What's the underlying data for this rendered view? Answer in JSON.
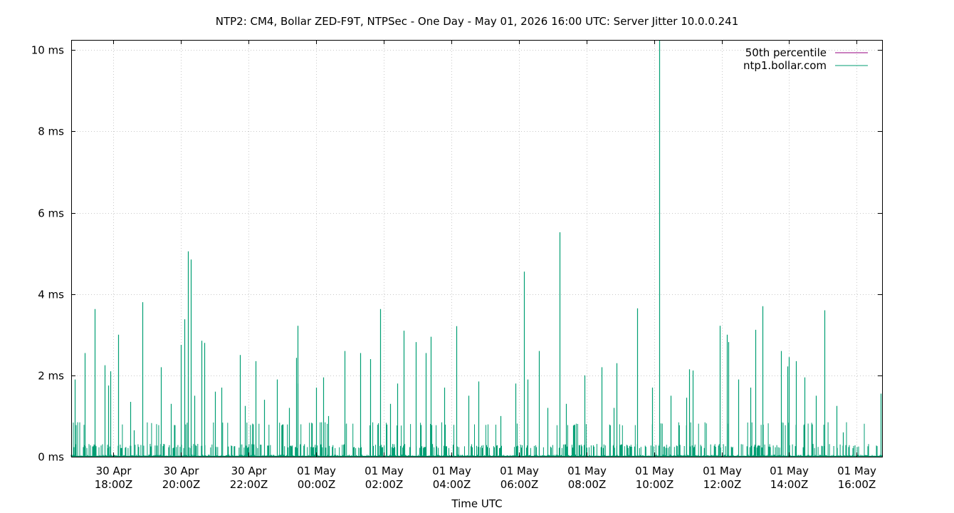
{
  "chart_data": {
    "type": "line",
    "title": "NTP2: CM4, Bollar ZED-F9T, NTPSec - One Day - May 01, 2026 16:00 UTC: Server Jitter 10.0.0.241",
    "xlabel": "Time UTC",
    "ylabel": "",
    "x_range_hours": [
      16.75,
      40.75
    ],
    "x_ticks": [
      {
        "hour": 18,
        "date": "30 Apr",
        "time": "18:00Z"
      },
      {
        "hour": 20,
        "date": "30 Apr",
        "time": "20:00Z"
      },
      {
        "hour": 22,
        "date": "30 Apr",
        "time": "22:00Z"
      },
      {
        "hour": 24,
        "date": "01 May",
        "time": "00:00Z"
      },
      {
        "hour": 26,
        "date": "01 May",
        "time": "02:00Z"
      },
      {
        "hour": 28,
        "date": "01 May",
        "time": "04:00Z"
      },
      {
        "hour": 30,
        "date": "01 May",
        "time": "06:00Z"
      },
      {
        "hour": 32,
        "date": "01 May",
        "time": "08:00Z"
      },
      {
        "hour": 34,
        "date": "01 May",
        "time": "10:00Z"
      },
      {
        "hour": 36,
        "date": "01 May",
        "time": "12:00Z"
      },
      {
        "hour": 38,
        "date": "01 May",
        "time": "14:00Z"
      },
      {
        "hour": 40,
        "date": "01 May",
        "time": "16:00Z"
      }
    ],
    "ylim": [
      0,
      10.25
    ],
    "y_ticks": [
      {
        "value": 0,
        "label": "0 ms"
      },
      {
        "value": 2,
        "label": "2 ms"
      },
      {
        "value": 4,
        "label": "4 ms"
      },
      {
        "value": 6,
        "label": "6 ms"
      },
      {
        "value": 8,
        "label": "8 ms"
      },
      {
        "value": 10,
        "label": "10 ms"
      }
    ],
    "grid": true,
    "legend_position": "top-right",
    "series": [
      {
        "name": "50th percentile",
        "color": "#94007f",
        "points": []
      },
      {
        "name": "ntp1.bollar.com",
        "color": "#009e73",
        "spikes": [
          [
            16.85,
            1.9
          ],
          [
            17.15,
            2.55
          ],
          [
            17.45,
            3.63
          ],
          [
            17.75,
            2.25
          ],
          [
            17.85,
            1.75
          ],
          [
            17.9,
            2.1
          ],
          [
            18.15,
            3.0
          ],
          [
            18.5,
            1.35
          ],
          [
            18.6,
            0.65
          ],
          [
            18.85,
            3.8
          ],
          [
            19.4,
            2.2
          ],
          [
            19.7,
            1.3
          ],
          [
            20.0,
            2.75
          ],
          [
            20.1,
            3.38
          ],
          [
            20.2,
            5.05
          ],
          [
            20.3,
            4.85
          ],
          [
            20.4,
            1.5
          ],
          [
            20.6,
            2.85
          ],
          [
            20.7,
            2.8
          ],
          [
            21.0,
            1.6
          ],
          [
            21.2,
            1.7
          ],
          [
            21.75,
            2.5
          ],
          [
            21.9,
            1.25
          ],
          [
            22.2,
            2.35
          ],
          [
            22.45,
            1.4
          ],
          [
            22.85,
            1.9
          ],
          [
            23.2,
            1.2
          ],
          [
            23.45,
            1.8
          ],
          [
            23.4,
            2.43
          ],
          [
            23.45,
            3.22
          ],
          [
            24.0,
            1.7
          ],
          [
            24.2,
            1.95
          ],
          [
            24.35,
            1.0
          ],
          [
            24.85,
            2.6
          ],
          [
            25.3,
            2.55
          ],
          [
            25.6,
            2.4
          ],
          [
            25.9,
            3.63
          ],
          [
            26.2,
            1.3
          ],
          [
            26.4,
            1.8
          ],
          [
            26.6,
            3.1
          ],
          [
            26.95,
            2.82
          ],
          [
            27.25,
            2.55
          ],
          [
            27.4,
            2.95
          ],
          [
            27.8,
            1.7
          ],
          [
            28.15,
            3.21
          ],
          [
            28.5,
            1.5
          ],
          [
            28.8,
            1.85
          ],
          [
            29.45,
            1.0
          ],
          [
            29.9,
            1.8
          ],
          [
            30.15,
            4.55
          ],
          [
            30.25,
            1.9
          ],
          [
            30.6,
            2.6
          ],
          [
            30.85,
            1.2
          ],
          [
            31.2,
            5.52
          ],
          [
            31.4,
            1.3
          ],
          [
            31.95,
            2.0
          ],
          [
            32.45,
            2.2
          ],
          [
            32.8,
            1.2
          ],
          [
            32.9,
            2.3
          ],
          [
            33.5,
            3.65
          ],
          [
            33.95,
            1.7
          ],
          [
            34.15,
            10.25
          ],
          [
            34.5,
            1.5
          ],
          [
            34.95,
            1.45
          ],
          [
            35.05,
            2.15
          ],
          [
            35.15,
            2.12
          ],
          [
            35.95,
            3.22
          ],
          [
            36.15,
            3.0
          ],
          [
            36.2,
            2.82
          ],
          [
            36.5,
            1.9
          ],
          [
            36.85,
            1.7
          ],
          [
            37.0,
            3.12
          ],
          [
            37.2,
            3.7
          ],
          [
            37.75,
            2.6
          ],
          [
            37.95,
            2.22
          ],
          [
            38.0,
            2.45
          ],
          [
            38.2,
            2.35
          ],
          [
            38.45,
            1.95
          ],
          [
            38.8,
            1.5
          ],
          [
            39.05,
            3.6
          ],
          [
            39.4,
            1.25
          ],
          [
            39.6,
            0.6
          ],
          [
            40.7,
            1.55
          ]
        ]
      }
    ]
  }
}
